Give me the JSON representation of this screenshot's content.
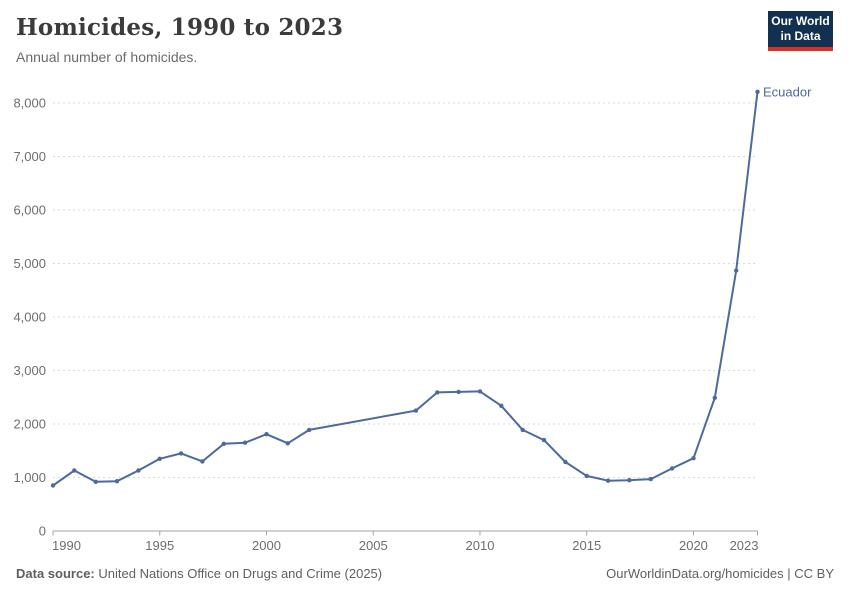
{
  "header": {
    "title": "Homicides, 1990 to 2023",
    "subtitle": "Annual number of homicides."
  },
  "logo": {
    "line1": "Our World",
    "line2": "in Data",
    "bg_color": "#12304F",
    "accent_color": "#D93025"
  },
  "chart_data": {
    "type": "line",
    "title": "Homicides, 1990 to 2023",
    "xlabel": "",
    "ylabel": "",
    "xlim": [
      1990,
      2023
    ],
    "ylim": [
      0,
      8000
    ],
    "x_ticks": [
      1990,
      1995,
      2000,
      2005,
      2010,
      2015,
      2020,
      2023
    ],
    "y_ticks": [
      0,
      1000,
      2000,
      3000,
      4000,
      5000,
      6000,
      7000,
      8000
    ],
    "grid": "horizontal-dashed",
    "grid_color": "#dadada",
    "axis_color": "#a3a3a3",
    "tick_label_color": "#6e6e6e",
    "legend_position": "line-end-label",
    "series": [
      {
        "name": "Ecuador",
        "color": "#4C6A9C",
        "points": [
          [
            1990,
            850
          ],
          [
            1991,
            1130
          ],
          [
            1992,
            920
          ],
          [
            1993,
            930
          ],
          [
            1994,
            1130
          ],
          [
            1995,
            1350
          ],
          [
            1996,
            1450
          ],
          [
            1997,
            1300
          ],
          [
            1998,
            1630
          ],
          [
            1999,
            1650
          ],
          [
            2000,
            1810
          ],
          [
            2001,
            1640
          ],
          [
            2002,
            1890
          ],
          [
            2007,
            2250
          ],
          [
            2008,
            2590
          ],
          [
            2009,
            2600
          ],
          [
            2010,
            2610
          ],
          [
            2011,
            2340
          ],
          [
            2012,
            1890
          ],
          [
            2013,
            1700
          ],
          [
            2014,
            1290
          ],
          [
            2015,
            1030
          ],
          [
            2016,
            940
          ],
          [
            2017,
            950
          ],
          [
            2018,
            970
          ],
          [
            2019,
            1170
          ],
          [
            2020,
            1360
          ],
          [
            2021,
            2490
          ],
          [
            2022,
            4870
          ],
          [
            2023,
            8210
          ]
        ]
      }
    ]
  },
  "footer": {
    "source_label": "Data source:",
    "source": "United Nations Office on Drugs and Crime (2025)",
    "credit": "OurWorldinData.org/homicides | CC BY"
  }
}
